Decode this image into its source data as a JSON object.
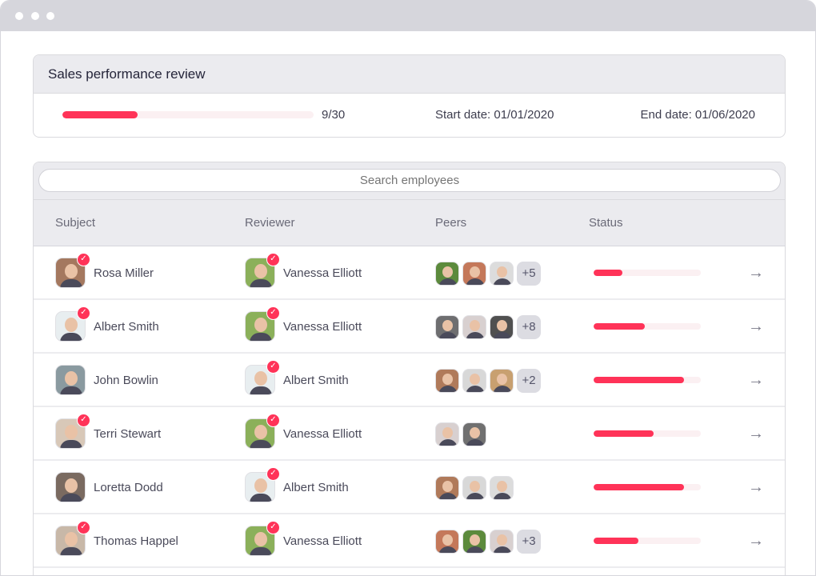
{
  "review": {
    "title": "Sales performance review",
    "progress_text": "9/30",
    "progress": 0.3,
    "start_date": "Start date: 01/01/2020",
    "end_date": "End date: 01/06/2020"
  },
  "search": {
    "placeholder": "Search employees"
  },
  "columns": {
    "subject": "Subject",
    "reviewer": "Reviewer",
    "peers": "Peers",
    "status": "Status"
  },
  "accent": "#ff3358",
  "rows": [
    {
      "subject": {
        "name": "Rosa Miller",
        "done": true,
        "color": "#a4785f"
      },
      "reviewer": {
        "name": "Vanessa Elliott",
        "done": true,
        "color": "#8bb05a"
      },
      "peers": [
        "#5c8a3c",
        "#c4785a",
        "#dcdcdc"
      ],
      "more": "+5",
      "status": 0.27
    },
    {
      "subject": {
        "name": "Albert Smith",
        "done": true,
        "color": "#e8eef0"
      },
      "reviewer": {
        "name": "Vanessa Elliott",
        "done": true,
        "color": "#8bb05a"
      },
      "peers": [
        "#6e6e70",
        "#d8d0d0",
        "#505050"
      ],
      "more": "+8",
      "status": 0.48
    },
    {
      "subject": {
        "name": "John Bowlin",
        "done": false,
        "color": "#8a9aa0"
      },
      "reviewer": {
        "name": "Albert Smith",
        "done": true,
        "color": "#e8eef0"
      },
      "peers": [
        "#b07a5a",
        "#d8d8d8",
        "#c8a070"
      ],
      "more": "+2",
      "status": 0.84
    },
    {
      "subject": {
        "name": "Terri Stewart",
        "done": true,
        "color": "#d8c8b8"
      },
      "reviewer": {
        "name": "Vanessa Elliott",
        "done": true,
        "color": "#8bb05a"
      },
      "peers": [
        "#d8d0d0",
        "#707070"
      ],
      "more": "",
      "status": 0.56
    },
    {
      "subject": {
        "name": "Loretta Dodd",
        "done": false,
        "color": "#7a6a60"
      },
      "reviewer": {
        "name": "Albert Smith",
        "done": true,
        "color": "#e8eef0"
      },
      "peers": [
        "#b07a5a",
        "#d8d8d8",
        "#dcdcdc"
      ],
      "more": "",
      "status": 0.84
    },
    {
      "subject": {
        "name": "Thomas Happel",
        "done": true,
        "color": "#c8b8a8"
      },
      "reviewer": {
        "name": "Vanessa Elliott",
        "done": true,
        "color": "#8bb05a"
      },
      "peers": [
        "#c4785a",
        "#5c8a3c",
        "#d8d0d0"
      ],
      "more": "+3",
      "status": 0.42
    }
  ]
}
